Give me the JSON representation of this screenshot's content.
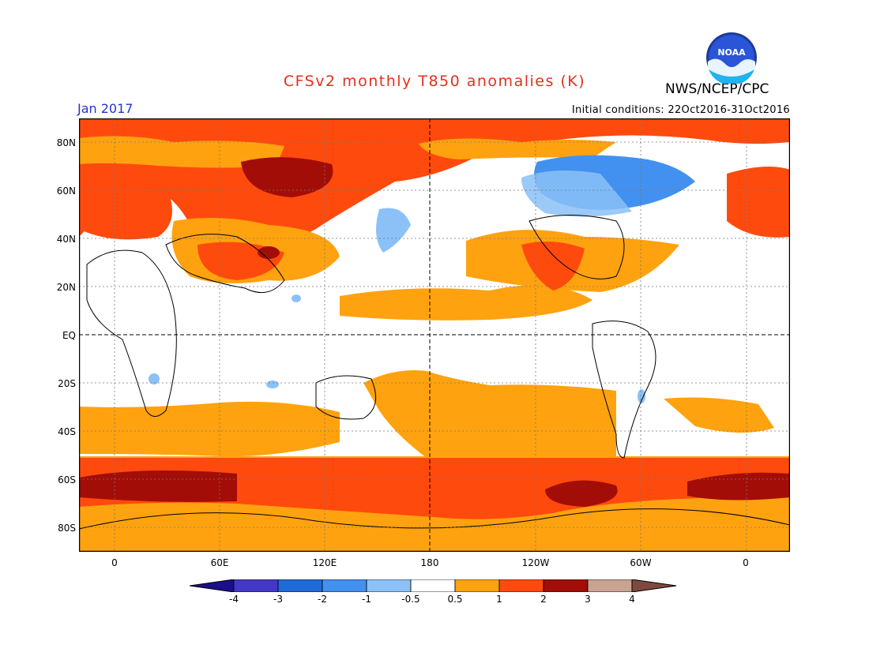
{
  "title": "CFSv2 monthly T850 anomalies (K)",
  "agency": "NWS/NCEP/CPC",
  "month": "Jan 2017",
  "initial_conditions": "Initial conditions: 22Oct2016-31Oct2016",
  "logo_text": "NOAA",
  "lat_labels": [
    "80N",
    "60N",
    "40N",
    "20N",
    "EQ",
    "20S",
    "40S",
    "60S",
    "80S"
  ],
  "lon_labels": [
    "0",
    "60E",
    "120E",
    "180",
    "120W",
    "60W",
    "0"
  ],
  "colorbar": {
    "labels": [
      "-4",
      "-3",
      "-2",
      "-1",
      "-0.5",
      "0.5",
      "1",
      "2",
      "3",
      "4"
    ],
    "colors": [
      "#1c0f8c",
      "#4437c9",
      "#1f6ad9",
      "#4291f0",
      "#8bc1f7",
      "#ffffff",
      "#ffa20f",
      "#ff4a0d",
      "#a30d07",
      "#c9a392",
      "#7d4a3d"
    ]
  },
  "colors": {
    "title": "#e0321e",
    "month": "#2233cc"
  }
}
